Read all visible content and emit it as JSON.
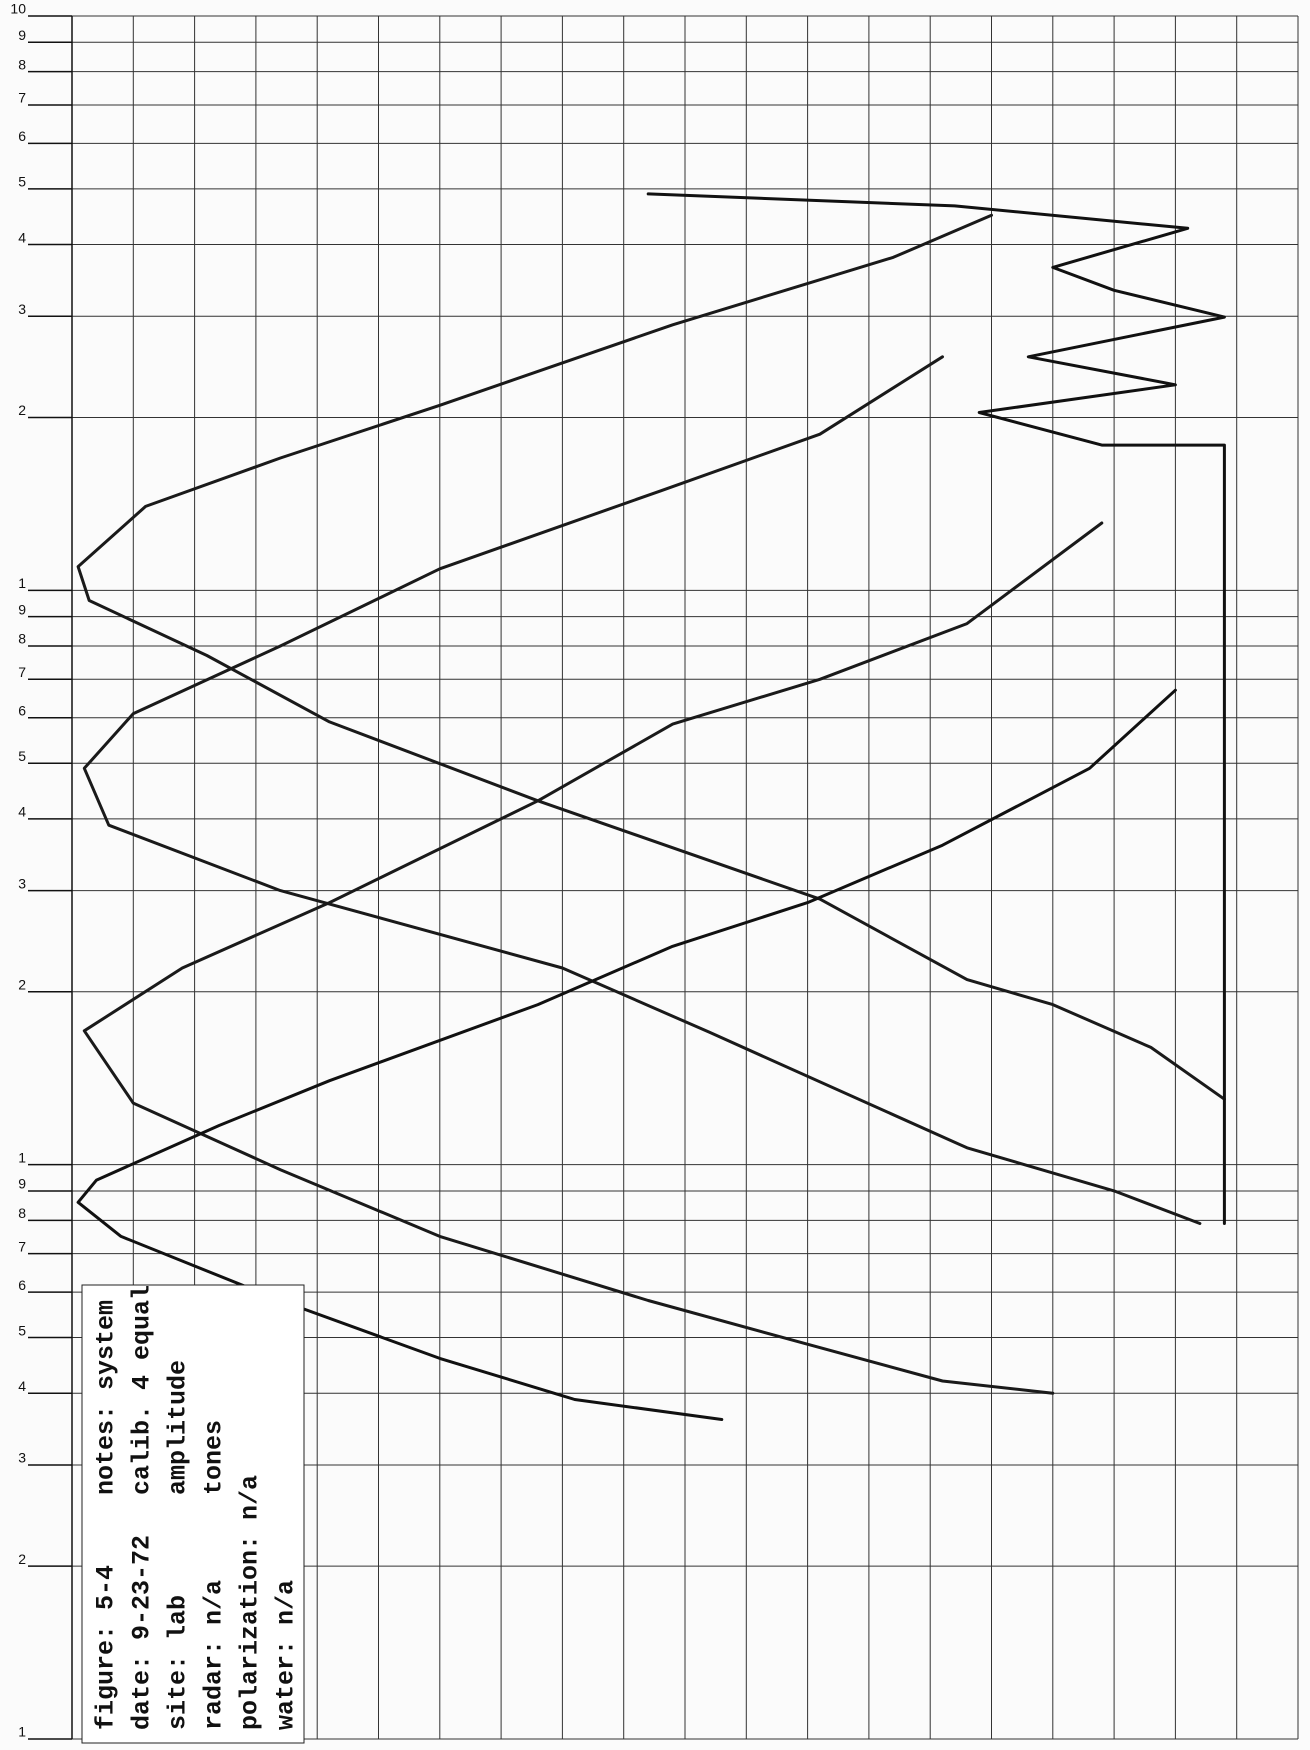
{
  "chart_data": {
    "type": "line",
    "log_y": true,
    "grid": true,
    "xlim": [
      0,
      100
    ],
    "xticks": [
      0,
      5,
      10,
      15,
      20,
      25,
      30,
      35,
      40,
      45,
      50,
      55,
      60,
      65,
      70,
      75,
      80,
      85,
      90,
      95,
      100
    ],
    "ylim": [
      0.01,
      10
    ],
    "yticks": [
      10,
      9,
      8,
      7,
      6,
      5,
      4,
      3,
      2,
      1,
      {
        "value": 0.9,
        "label": "9"
      },
      {
        "value": 0.8,
        "label": "8"
      },
      {
        "value": 0.7,
        "label": "7"
      },
      {
        "value": 0.6,
        "label": "6"
      },
      {
        "value": 0.5,
        "label": "5"
      },
      {
        "value": 0.4,
        "label": "4"
      },
      {
        "value": 0.3,
        "label": "3"
      },
      {
        "value": 0.2,
        "label": "2"
      },
      {
        "value": 0.1,
        "label": "1"
      },
      {
        "value": 0.09,
        "label": "9"
      },
      {
        "value": 0.08,
        "label": "8"
      },
      {
        "value": 0.07,
        "label": "7"
      },
      {
        "value": 0.06,
        "label": "6"
      },
      {
        "value": 0.05,
        "label": "5"
      },
      {
        "value": 0.04,
        "label": "4"
      },
      {
        "value": 0.03,
        "label": "3"
      },
      {
        "value": 0.02,
        "label": "2"
      },
      {
        "value": 0.01,
        "label": "1"
      }
    ],
    "series": [
      {
        "color": "#1a1a1a",
        "x": [
          75,
          67,
          49,
          30,
          17,
          6,
          0.5,
          1.4,
          11,
          21,
          38,
          61,
          73,
          80,
          88,
          94
        ],
        "values": [
          4.5,
          3.8,
          2.9,
          2.1,
          1.7,
          1.4,
          1.1,
          0.96,
          0.77,
          0.59,
          0.43,
          0.29,
          0.21,
          0.19,
          0.16,
          0.13
        ]
      },
      {
        "color": "#1a1a1a",
        "x": [
          71,
          61,
          48,
          30,
          17,
          5,
          1,
          3,
          17,
          40,
          52,
          73,
          85,
          92
        ],
        "values": [
          2.55,
          1.87,
          1.49,
          1.09,
          0.8,
          0.61,
          0.49,
          0.39,
          0.3,
          0.22,
          0.17,
          0.107,
          0.09,
          0.079
        ]
      },
      {
        "color": "#1a1a1a",
        "x": [
          84,
          73,
          61,
          49,
          38,
          21,
          9,
          1,
          5,
          17,
          30,
          47,
          58,
          71,
          80
        ],
        "values": [
          1.31,
          0.875,
          0.7,
          0.585,
          0.43,
          0.286,
          0.22,
          0.171,
          0.128,
          0.098,
          0.075,
          0.058,
          0.05,
          0.042,
          0.04
        ]
      },
      {
        "color": "#111111",
        "x": [
          90,
          83,
          71,
          60,
          49,
          38,
          21,
          12,
          2,
          0.5,
          4,
          17,
          30,
          41,
          53
        ],
        "values": [
          0.67,
          0.49,
          0.36,
          0.286,
          0.24,
          0.19,
          0.14,
          0.117,
          0.094,
          0.086,
          0.075,
          0.058,
          0.046,
          0.039,
          0.036
        ]
      },
      {
        "color": "#111111",
        "x": [
          47,
          72,
          91,
          80,
          85,
          94,
          78,
          90,
          74,
          84,
          94,
          94
        ],
        "values": [
          4.9,
          4.67,
          4.27,
          3.65,
          3.33,
          2.99,
          2.55,
          2.28,
          2.04,
          1.79,
          1.79,
          0.079
        ]
      }
    ],
    "figure_info": [
      "figure: 5-4",
      "date: 9-23-72",
      "site: lab",
      "radar: n/a",
      "polarization: n/a",
      "water: n/a"
    ],
    "notes": [
      "notes: system",
      "calib. 4 equal",
      "amplitude",
      "tones"
    ]
  }
}
